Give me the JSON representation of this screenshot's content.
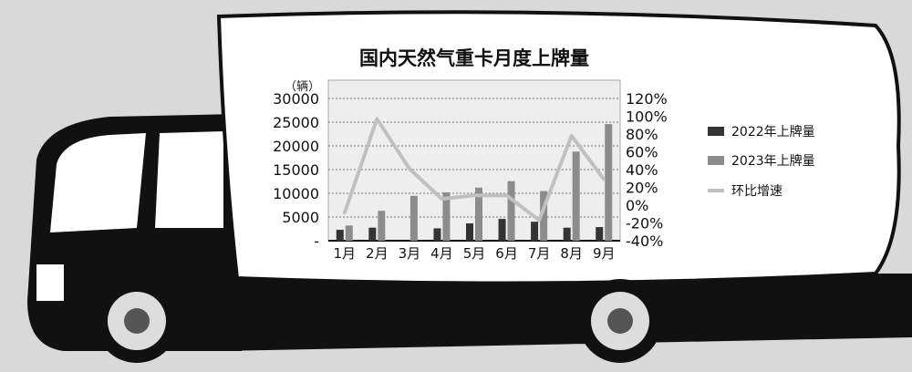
{
  "chart_data": {
    "type": "bar",
    "title": "国内天然气重卡月度上牌量",
    "ylabel": "（辆）",
    "categories": [
      "1月",
      "2月",
      "3月",
      "4月",
      "5月",
      "6月",
      "7月",
      "8月",
      "9月"
    ],
    "series": [
      {
        "name": "2022年上牌量",
        "kind": "bar",
        "axis": "left",
        "color": "#333333",
        "values": [
          2300,
          2750,
          0,
          2600,
          3650,
          4600,
          4000,
          2750,
          2870
        ]
      },
      {
        "name": "2023年上牌量",
        "kind": "bar",
        "axis": "left",
        "color": "#8c8c8c",
        "values": [
          3200,
          6300,
          9450,
          10200,
          11200,
          12570,
          10470,
          18800,
          24600
        ]
      },
      {
        "name": "环比增速",
        "kind": "line",
        "axis": "right",
        "unit": "%",
        "color": "#c0c0c0",
        "values": [
          -9,
          97,
          41,
          7,
          11,
          11,
          -17,
          78,
          29
        ]
      }
    ],
    "ylim": [
      0,
      30000
    ],
    "yticks": [
      "-",
      "5000",
      "10000",
      "15000",
      "20000",
      "25000",
      "30000"
    ],
    "y2lim": [
      -40,
      120
    ],
    "y2ticks": [
      "-40%",
      "-20%",
      "0%",
      "20%",
      "40%",
      "60%",
      "80%",
      "100%",
      "120%"
    ],
    "grid": true,
    "legend": "right"
  }
}
